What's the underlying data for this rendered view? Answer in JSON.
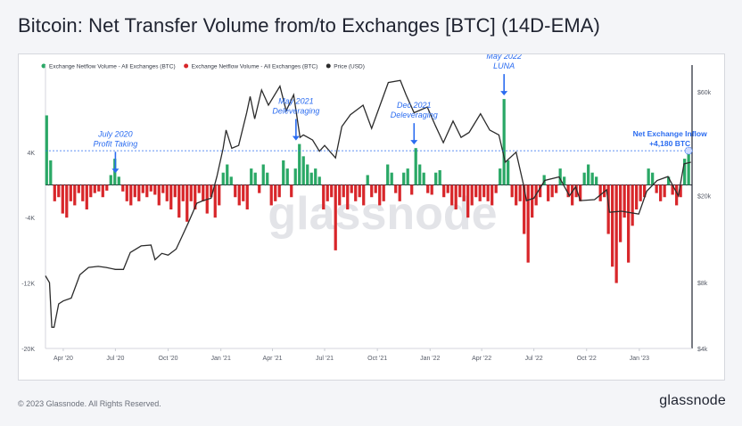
{
  "title": "Bitcoin: Net Transfer Volume from/to Exchanges [BTC] (14D-EMA)",
  "footer": {
    "copyright": "© 2023 Glassnode. All Rights Reserved.",
    "logo": "glassnode"
  },
  "watermark": "glassnode",
  "colors": {
    "inflow": "#2aa866",
    "outflow": "#d8262a",
    "price": "#2b2b2b",
    "annotation": "#2b6cf0",
    "reference_line": "#2b6cf0"
  },
  "chart_data": {
    "type": "bar",
    "legend": [
      {
        "name": "Exchange Netflow Volume - All Exchanges (BTC)",
        "color": "#2aa866"
      },
      {
        "name": "Exchange Netflow Volume - All Exchanges (BTC)",
        "color": "#d8262a"
      },
      {
        "name": "Price (USD)",
        "color": "#2b2b2b"
      }
    ],
    "legend_position": "top-left",
    "x_start": "2020-03-01",
    "x_end": "2023-04-03",
    "x_ticks": [
      {
        "date": "2020-04-01",
        "label": "Apr '20"
      },
      {
        "date": "2020-07-01",
        "label": "Jul '20"
      },
      {
        "date": "2020-10-01",
        "label": "Oct '20"
      },
      {
        "date": "2021-01-01",
        "label": "Jan '21"
      },
      {
        "date": "2021-04-01",
        "label": "Apr '21"
      },
      {
        "date": "2021-07-01",
        "label": "Jul '21"
      },
      {
        "date": "2021-10-01",
        "label": "Oct '21"
      },
      {
        "date": "2022-01-01",
        "label": "Jan '22"
      },
      {
        "date": "2022-04-01",
        "label": "Apr '22"
      },
      {
        "date": "2022-07-01",
        "label": "Jul '22"
      },
      {
        "date": "2022-10-01",
        "label": "Oct '22"
      },
      {
        "date": "2023-01-01",
        "label": "Jan '23"
      }
    ],
    "left_axis": {
      "ticks": [
        {
          "value": 4000,
          "label": "4K"
        },
        {
          "value": -4000,
          "label": "-4K"
        },
        {
          "value": -12000,
          "label": "-12K"
        },
        {
          "value": -20000,
          "label": "-20K"
        }
      ],
      "range": [
        -20000,
        14000
      ]
    },
    "right_axis": {
      "scale": "log",
      "ticks": [
        {
          "value": 60000,
          "label": "$60k"
        },
        {
          "value": 20000,
          "label": "$20k"
        },
        {
          "value": 8000,
          "label": "$8k"
        },
        {
          "value": 4000,
          "label": "$4k"
        }
      ],
      "range": [
        4000,
        75000
      ]
    },
    "netflow": [
      [
        "2020-03-03",
        8500
      ],
      [
        "2020-03-10",
        3000
      ],
      [
        "2020-03-17",
        -2000
      ],
      [
        "2020-03-24",
        -1500
      ],
      [
        "2020-03-31",
        -3500
      ],
      [
        "2020-04-07",
        -4000
      ],
      [
        "2020-04-14",
        -2000
      ],
      [
        "2020-04-21",
        -2500
      ],
      [
        "2020-04-28",
        -1000
      ],
      [
        "2020-05-05",
        -2000
      ],
      [
        "2020-05-12",
        -3000
      ],
      [
        "2020-05-19",
        -1500
      ],
      [
        "2020-05-26",
        -1000
      ],
      [
        "2020-06-02",
        -800
      ],
      [
        "2020-06-09",
        -1500
      ],
      [
        "2020-06-16",
        -700
      ],
      [
        "2020-06-23",
        1200
      ],
      [
        "2020-06-30",
        3200
      ],
      [
        "2020-07-07",
        1000
      ],
      [
        "2020-07-14",
        -800
      ],
      [
        "2020-07-21",
        -2000
      ],
      [
        "2020-07-28",
        -2500
      ],
      [
        "2020-08-04",
        -1500
      ],
      [
        "2020-08-11",
        -2000
      ],
      [
        "2020-08-18",
        -1000
      ],
      [
        "2020-08-25",
        -1500
      ],
      [
        "2020-09-01",
        -800
      ],
      [
        "2020-09-08",
        -1200
      ],
      [
        "2020-09-15",
        -2500
      ],
      [
        "2020-09-22",
        -1000
      ],
      [
        "2020-09-29",
        -2000
      ],
      [
        "2020-10-06",
        -3000
      ],
      [
        "2020-10-13",
        -1500
      ],
      [
        "2020-10-20",
        -4000
      ],
      [
        "2020-10-27",
        -2000
      ],
      [
        "2020-11-03",
        -4500
      ],
      [
        "2020-11-10",
        -2000
      ],
      [
        "2020-11-17",
        -3000
      ],
      [
        "2020-11-24",
        -1000
      ],
      [
        "2020-12-01",
        -2000
      ],
      [
        "2020-12-08",
        -3500
      ],
      [
        "2020-12-15",
        -1500
      ],
      [
        "2020-12-22",
        -4000
      ],
      [
        "2020-12-29",
        -2500
      ],
      [
        "2021-01-05",
        1500
      ],
      [
        "2021-01-12",
        2500
      ],
      [
        "2021-01-19",
        1000
      ],
      [
        "2021-01-26",
        -1500
      ],
      [
        "2021-02-02",
        -2500
      ],
      [
        "2021-02-09",
        -2000
      ],
      [
        "2021-02-16",
        -3000
      ],
      [
        "2021-02-23",
        2000
      ],
      [
        "2021-03-02",
        1500
      ],
      [
        "2021-03-09",
        -1000
      ],
      [
        "2021-03-16",
        2500
      ],
      [
        "2021-03-23",
        1500
      ],
      [
        "2021-03-30",
        -2500
      ],
      [
        "2021-04-06",
        -2000
      ],
      [
        "2021-04-13",
        -1500
      ],
      [
        "2021-04-20",
        3000
      ],
      [
        "2021-04-27",
        2000
      ],
      [
        "2021-05-04",
        -1500
      ],
      [
        "2021-05-11",
        2000
      ],
      [
        "2021-05-18",
        5000
      ],
      [
        "2021-05-25",
        3500
      ],
      [
        "2021-06-01",
        2500
      ],
      [
        "2021-06-08",
        1500
      ],
      [
        "2021-06-15",
        2000
      ],
      [
        "2021-06-22",
        1000
      ],
      [
        "2021-06-29",
        -3000
      ],
      [
        "2021-07-06",
        -2000
      ],
      [
        "2021-07-13",
        -1500
      ],
      [
        "2021-07-20",
        -8000
      ],
      [
        "2021-07-27",
        -2500
      ],
      [
        "2021-08-03",
        -1500
      ],
      [
        "2021-08-10",
        -3000
      ],
      [
        "2021-08-17",
        -1000
      ],
      [
        "2021-08-24",
        -2000
      ],
      [
        "2021-08-31",
        -1500
      ],
      [
        "2021-09-07",
        -2500
      ],
      [
        "2021-09-14",
        1200
      ],
      [
        "2021-09-21",
        -1500
      ],
      [
        "2021-09-28",
        -1000
      ],
      [
        "2021-10-05",
        -2500
      ],
      [
        "2021-10-12",
        -2000
      ],
      [
        "2021-10-19",
        2500
      ],
      [
        "2021-10-26",
        1500
      ],
      [
        "2021-11-02",
        -1000
      ],
      [
        "2021-11-09",
        -2000
      ],
      [
        "2021-11-16",
        1500
      ],
      [
        "2021-11-23",
        2000
      ],
      [
        "2021-11-30",
        -1200
      ],
      [
        "2021-12-07",
        4500
      ],
      [
        "2021-12-14",
        2500
      ],
      [
        "2021-12-21",
        1500
      ],
      [
        "2021-12-28",
        -1000
      ],
      [
        "2022-01-04",
        -1200
      ],
      [
        "2022-01-11",
        1500
      ],
      [
        "2022-01-18",
        1800
      ],
      [
        "2022-01-25",
        -1500
      ],
      [
        "2022-02-01",
        -1000
      ],
      [
        "2022-02-08",
        -2500
      ],
      [
        "2022-02-15",
        -3000
      ],
      [
        "2022-02-22",
        -1500
      ],
      [
        "2022-03-01",
        -2000
      ],
      [
        "2022-03-08",
        -4000
      ],
      [
        "2022-03-15",
        -2500
      ],
      [
        "2022-03-22",
        -1500
      ],
      [
        "2022-03-29",
        -2000
      ],
      [
        "2022-04-05",
        -1500
      ],
      [
        "2022-04-12",
        -2000
      ],
      [
        "2022-04-19",
        -2500
      ],
      [
        "2022-04-26",
        -1000
      ],
      [
        "2022-05-03",
        2000
      ],
      [
        "2022-05-10",
        10500
      ],
      [
        "2022-05-17",
        3000
      ],
      [
        "2022-05-24",
        -1500
      ],
      [
        "2022-05-31",
        -2500
      ],
      [
        "2022-06-07",
        -2000
      ],
      [
        "2022-06-14",
        -6000
      ],
      [
        "2022-06-21",
        -9500
      ],
      [
        "2022-06-28",
        -4000
      ],
      [
        "2022-07-05",
        -2500
      ],
      [
        "2022-07-12",
        -1500
      ],
      [
        "2022-07-19",
        1200
      ],
      [
        "2022-07-26",
        -2000
      ],
      [
        "2022-08-02",
        -1500
      ],
      [
        "2022-08-09",
        -1000
      ],
      [
        "2022-08-16",
        2000
      ],
      [
        "2022-08-23",
        1000
      ],
      [
        "2022-08-30",
        -1500
      ],
      [
        "2022-09-06",
        -2500
      ],
      [
        "2022-09-13",
        -1500
      ],
      [
        "2022-09-20",
        -2000
      ],
      [
        "2022-09-27",
        1500
      ],
      [
        "2022-10-04",
        2500
      ],
      [
        "2022-10-11",
        1500
      ],
      [
        "2022-10-18",
        1000
      ],
      [
        "2022-10-25",
        -2000
      ],
      [
        "2022-11-01",
        -1500
      ],
      [
        "2022-11-08",
        -6000
      ],
      [
        "2022-11-15",
        -10000
      ],
      [
        "2022-11-22",
        -12000
      ],
      [
        "2022-11-29",
        -7000
      ],
      [
        "2022-12-06",
        -4000
      ],
      [
        "2022-12-13",
        -9500
      ],
      [
        "2022-12-20",
        -5000
      ],
      [
        "2022-12-27",
        -3000
      ],
      [
        "2023-01-03",
        -2000
      ],
      [
        "2023-01-10",
        -1500
      ],
      [
        "2023-01-17",
        2000
      ],
      [
        "2023-01-24",
        1500
      ],
      [
        "2023-01-31",
        -1000
      ],
      [
        "2023-02-07",
        -2000
      ],
      [
        "2023-02-14",
        -1500
      ],
      [
        "2023-02-21",
        1000
      ],
      [
        "2023-02-28",
        -1200
      ],
      [
        "2023-03-07",
        -2500
      ],
      [
        "2023-03-14",
        -1500
      ],
      [
        "2023-03-21",
        3200
      ],
      [
        "2023-03-28",
        4180
      ]
    ],
    "price": [
      [
        "2020-03-01",
        8600
      ],
      [
        "2020-03-08",
        8000
      ],
      [
        "2020-03-12",
        5000
      ],
      [
        "2020-03-16",
        5000
      ],
      [
        "2020-03-24",
        6400
      ],
      [
        "2020-04-01",
        6600
      ],
      [
        "2020-04-15",
        6800
      ],
      [
        "2020-04-30",
        8700
      ],
      [
        "2020-05-15",
        9400
      ],
      [
        "2020-06-01",
        9500
      ],
      [
        "2020-06-15",
        9400
      ],
      [
        "2020-07-01",
        9200
      ],
      [
        "2020-07-15",
        9200
      ],
      [
        "2020-07-27",
        11000
      ],
      [
        "2020-08-15",
        11800
      ],
      [
        "2020-09-01",
        11900
      ],
      [
        "2020-09-08",
        10200
      ],
      [
        "2020-09-20",
        10900
      ],
      [
        "2020-10-01",
        10700
      ],
      [
        "2020-10-15",
        11400
      ],
      [
        "2020-10-25",
        13000
      ],
      [
        "2020-11-05",
        15000
      ],
      [
        "2020-11-20",
        18500
      ],
      [
        "2020-12-01",
        19000
      ],
      [
        "2020-12-15",
        19500
      ],
      [
        "2020-12-25",
        24500
      ],
      [
        "2021-01-05",
        33000
      ],
      [
        "2021-01-10",
        40000
      ],
      [
        "2021-01-20",
        33000
      ],
      [
        "2021-02-01",
        34000
      ],
      [
        "2021-02-15",
        48000
      ],
      [
        "2021-02-21",
        57000
      ],
      [
        "2021-03-01",
        45000
      ],
      [
        "2021-03-13",
        61000
      ],
      [
        "2021-03-25",
        52000
      ],
      [
        "2021-04-14",
        63500
      ],
      [
        "2021-04-25",
        49000
      ],
      [
        "2021-05-08",
        58000
      ],
      [
        "2021-05-19",
        37000
      ],
      [
        "2021-05-25",
        38000
      ],
      [
        "2021-06-10",
        36000
      ],
      [
        "2021-06-22",
        32000
      ],
      [
        "2021-07-01",
        34000
      ],
      [
        "2021-07-20",
        29800
      ],
      [
        "2021-07-31",
        41500
      ],
      [
        "2021-08-15",
        47000
      ],
      [
        "2021-09-06",
        52000
      ],
      [
        "2021-09-21",
        40700
      ],
      [
        "2021-10-01",
        48000
      ],
      [
        "2021-10-20",
        66000
      ],
      [
        "2021-11-10",
        67500
      ],
      [
        "2021-11-20",
        58000
      ],
      [
        "2021-12-04",
        48000
      ],
      [
        "2021-12-27",
        51000
      ],
      [
        "2022-01-10",
        42000
      ],
      [
        "2022-01-24",
        35000
      ],
      [
        "2022-02-10",
        44000
      ],
      [
        "2022-02-24",
        37000
      ],
      [
        "2022-03-10",
        39000
      ],
      [
        "2022-03-30",
        47500
      ],
      [
        "2022-04-15",
        40000
      ],
      [
        "2022-05-01",
        38000
      ],
      [
        "2022-05-12",
        28500
      ],
      [
        "2022-05-31",
        31700
      ],
      [
        "2022-06-13",
        22500
      ],
      [
        "2022-06-18",
        19000
      ],
      [
        "2022-07-01",
        19500
      ],
      [
        "2022-07-20",
        23500
      ],
      [
        "2022-08-14",
        24400
      ],
      [
        "2022-09-01",
        20000
      ],
      [
        "2022-09-12",
        22000
      ],
      [
        "2022-09-20",
        19000
      ],
      [
        "2022-10-15",
        19200
      ],
      [
        "2022-11-05",
        21300
      ],
      [
        "2022-11-10",
        16800
      ],
      [
        "2022-12-01",
        17000
      ],
      [
        "2022-12-31",
        16500
      ],
      [
        "2023-01-14",
        21000
      ],
      [
        "2023-02-01",
        23500
      ],
      [
        "2023-02-20",
        24500
      ],
      [
        "2023-03-10",
        20000
      ],
      [
        "2023-03-20",
        28000
      ],
      [
        "2023-04-01",
        28500
      ]
    ],
    "reference_line": {
      "value": 4180
    },
    "annotations": [
      {
        "date": "2020-07-01",
        "lines": [
          "July 2020",
          "Profit Taking"
        ],
        "color": "#2b6cf0"
      },
      {
        "date": "2021-05-12",
        "lines": [
          "May 2021",
          "Deleveraging"
        ],
        "color": "#2b6cf0"
      },
      {
        "date": "2021-12-04",
        "lines": [
          "Dec 2021",
          "Deleveraging"
        ],
        "color": "#2b6cf0"
      },
      {
        "date": "2022-05-10",
        "lines": [
          "May 2022",
          "LUNA"
        ],
        "color": "#2b6cf0"
      }
    ],
    "callout": {
      "lines": [
        "Net Exchange Inflow",
        "+4,180 BTC"
      ],
      "color": "#2b6cf0"
    }
  }
}
